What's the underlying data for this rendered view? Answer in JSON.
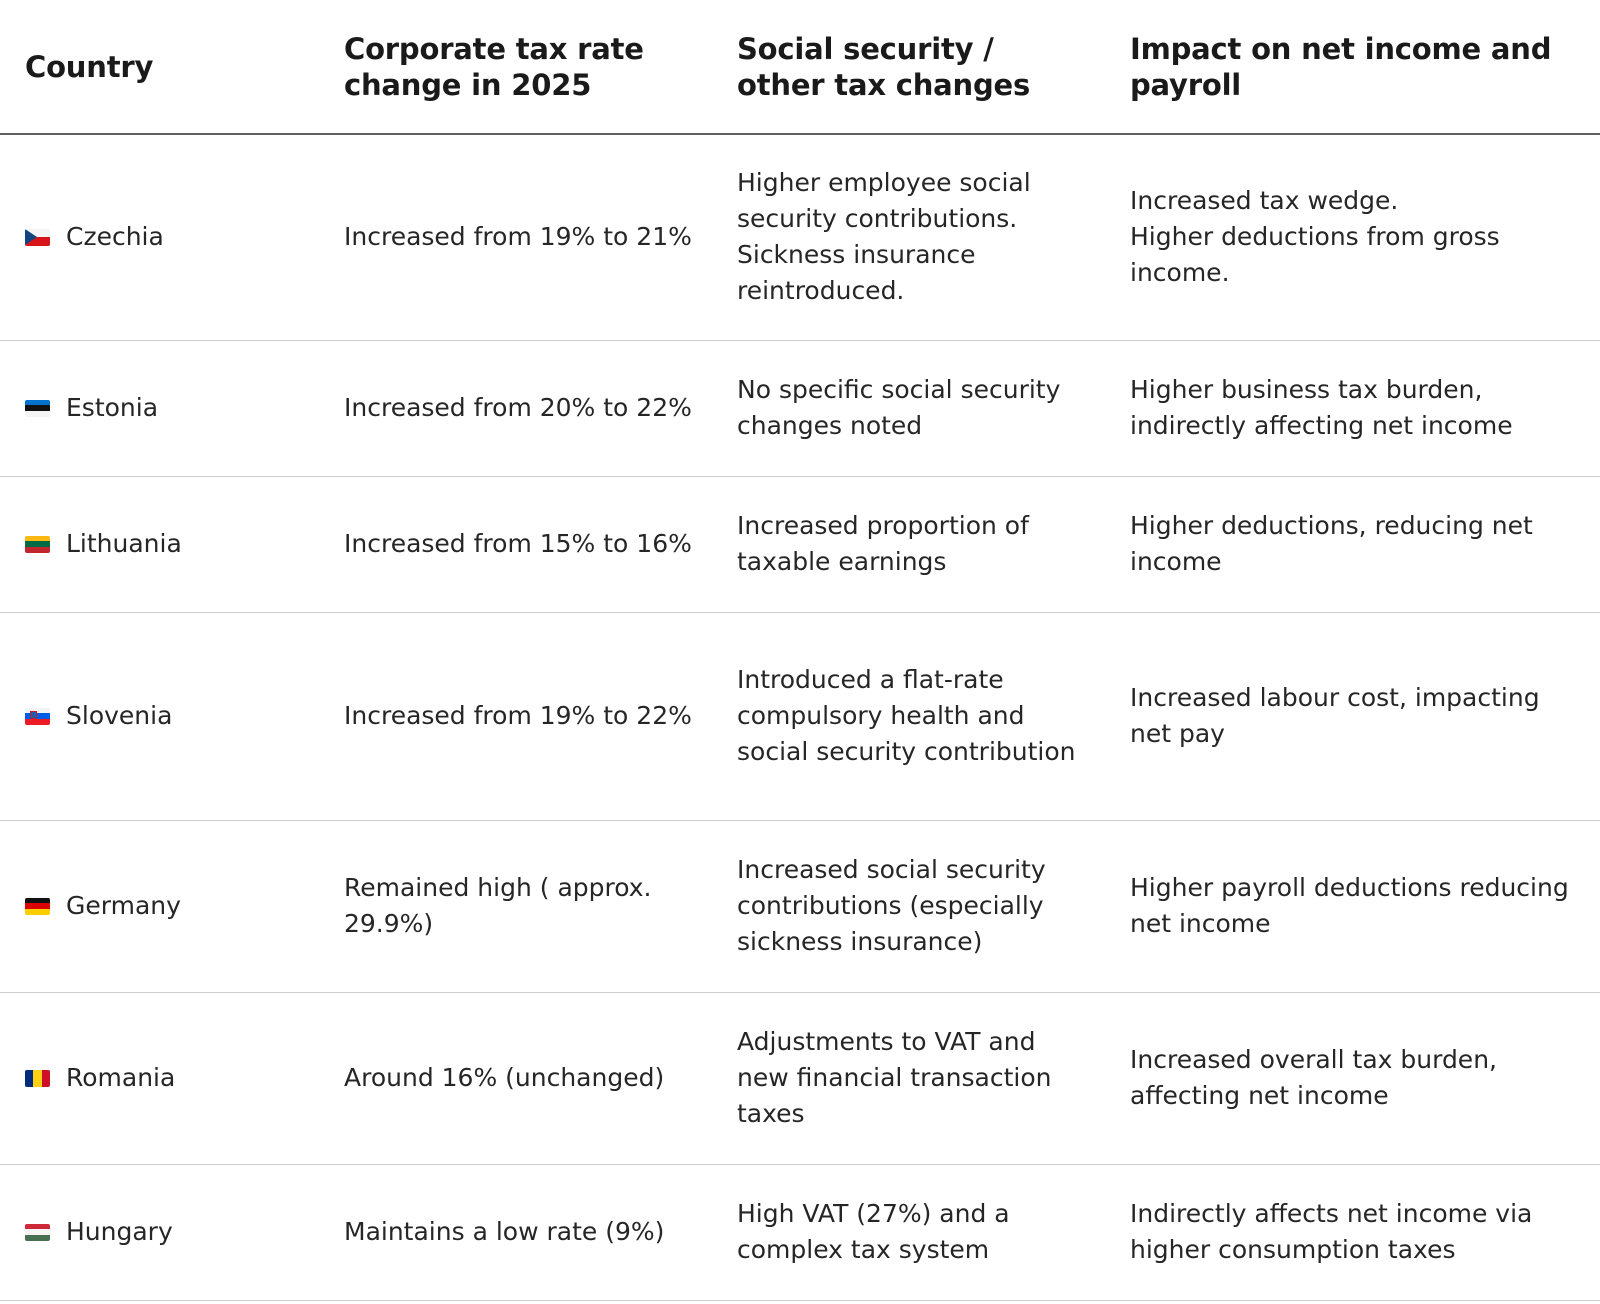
{
  "headers": {
    "country": "Country",
    "corporate": "Corporate tax rate change in 2025",
    "social": "Social security / other tax changes",
    "impact": "Impact on net income and payroll"
  },
  "rows": [
    {
      "country": "Czechia",
      "flag_icon": "czechia-flag-icon",
      "corporate": "Increased from 19% to 21%",
      "social": "Higher employee social security contributions. Sickness insurance reintroduced.",
      "impact_lines": [
        "Increased tax wedge.",
        "Higher deductions from gross income."
      ]
    },
    {
      "country": "Estonia",
      "flag_icon": "estonia-flag-icon",
      "corporate": "Increased from 20% to 22%",
      "social": "No specific social security changes noted",
      "impact_lines": [
        "Higher business tax burden, indirectly affecting net income"
      ]
    },
    {
      "country": "Lithuania",
      "flag_icon": "lithuania-flag-icon",
      "corporate": "Increased from 15% to 16%",
      "social": "Increased proportion of taxable earnings",
      "impact_lines": [
        "Higher deductions, reducing net income"
      ]
    },
    {
      "country": "Slovenia",
      "flag_icon": "slovenia-flag-icon",
      "corporate": "Increased from 19% to 22%",
      "social": "Introduced a flat-rate compulsory health and social security contribution",
      "impact_lines": [
        "Increased labour cost, impacting net pay"
      ]
    },
    {
      "country": "Germany",
      "flag_icon": "germany-flag-icon",
      "corporate": "Remained high ( approx. 29.9%)",
      "social": "Increased social security contributions (especially sickness insurance)",
      "impact_lines": [
        "Higher payroll deductions reducing net income"
      ]
    },
    {
      "country": "Romania",
      "flag_icon": "romania-flag-icon",
      "corporate": "Around 16% (unchanged)",
      "social": "Adjustments to VAT and new financial transaction taxes",
      "impact_lines": [
        "Increased overall tax burden, affecting net income"
      ]
    },
    {
      "country": "Hungary",
      "flag_icon": "hungary-flag-icon",
      "corporate": "Maintains a low rate (9%)",
      "social": "High VAT (27%) and a complex tax system",
      "impact_lines": [
        "Indirectly affects net income via higher consumption taxes"
      ]
    }
  ]
}
